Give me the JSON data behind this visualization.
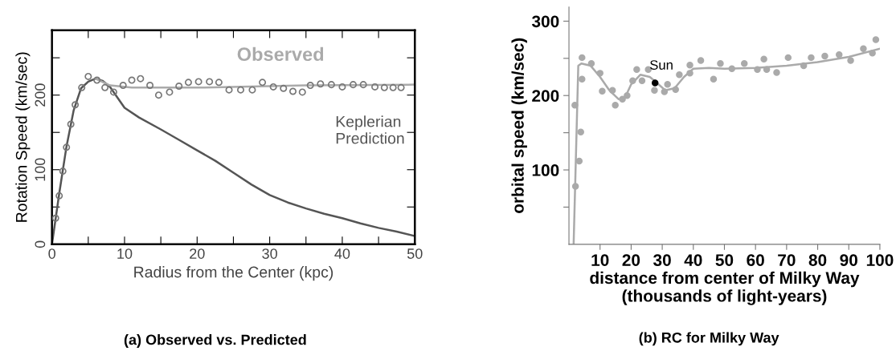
{
  "chart_data": [
    {
      "type": "line",
      "title": "(a) Observed vs. Predicted",
      "xlabel": "Radius from the Center (kpc)",
      "ylabel": "Rotation Speed (km/sec)",
      "xlim": [
        0,
        50
      ],
      "ylim": [
        0,
        287
      ],
      "xticks": [
        0,
        {
          "value": 5,
          "label": null
        },
        10,
        {
          "value": 15,
          "label": null
        },
        20,
        {
          "value": 25,
          "label": null
        },
        30,
        {
          "value": 35,
          "label": null
        },
        40,
        {
          "value": 45,
          "label": null
        },
        50
      ],
      "yticks": [
        0,
        {
          "value": 50,
          "label": null
        },
        100,
        {
          "value": 150,
          "label": null
        },
        200,
        {
          "value": 250,
          "label": null
        }
      ],
      "grid": false,
      "legend": false,
      "series": [
        {
          "name": "Keplerian Prediction",
          "color": "#555555",
          "x": [
            0,
            1,
            2,
            3,
            4,
            5,
            6,
            7,
            8,
            10,
            12,
            15,
            17.5,
            20,
            22.5,
            25,
            27.5,
            30,
            32.5,
            35,
            37.5,
            40,
            42.5,
            45,
            47.5,
            50
          ],
          "values": [
            0,
            68,
            131,
            180,
            209,
            218,
            222,
            219,
            211,
            183,
            170,
            154,
            140,
            126,
            112,
            96,
            80,
            66,
            56,
            48,
            41,
            35,
            28,
            22,
            17,
            11
          ]
        },
        {
          "color": "#aaaaaa",
          "x": [
            6,
            8,
            11,
            20,
            35,
            50
          ],
          "values": [
            222,
            213,
            210,
            210,
            213,
            214
          ]
        },
        {
          "type": "scatter",
          "name": "Observed",
          "color": "#777777",
          "marker": "circle",
          "x": [
            0.5,
            1,
            1.5,
            2,
            2.6,
            3.2,
            4.1,
            5,
            6.2,
            7.3,
            8.5,
            9.8,
            11,
            12.2,
            13.5,
            14.7,
            16.2,
            17.5,
            18.8,
            20.2,
            21.7,
            23,
            24.4,
            26,
            27.6,
            29,
            30.5,
            31.9,
            33.2,
            34.5,
            35.6,
            37,
            38.5,
            40,
            41.5,
            42.9,
            44.5,
            45.8,
            47,
            48.1
          ],
          "values": [
            35,
            65,
            98,
            130,
            161,
            187,
            210,
            225,
            220,
            210,
            204,
            213,
            220,
            222,
            213,
            200,
            204,
            212,
            217,
            218,
            218,
            217,
            207,
            207,
            207,
            217,
            211,
            209,
            205,
            204,
            213,
            215,
            214,
            211,
            214,
            214,
            211,
            210,
            210,
            210
          ]
        }
      ]
    },
    {
      "type": "scatter",
      "title": "(b) RC for Milky Way",
      "xlabel": "distance from center of Milky Way\n(thousands of light-years)",
      "ylabel": "orbital speed (km/sec)",
      "xlim": [
        0,
        100
      ],
      "ylim": [
        0,
        319
      ],
      "xticks": [
        10,
        20,
        30,
        40,
        50,
        60,
        70,
        80,
        90,
        100
      ],
      "yticks": [
        {
          "value": 50,
          "label": null
        },
        100,
        {
          "value": 150,
          "label": null
        },
        200,
        {
          "value": 250,
          "label": null
        },
        300
      ],
      "grid": false,
      "legend": false,
      "series": [
        {
          "type": "line",
          "color": "#aaaaaa",
          "x": [
            1.5,
            3,
            4,
            7,
            10,
            13,
            16,
            18,
            20,
            23,
            26,
            28,
            31,
            34,
            37,
            40,
            45,
            50,
            60,
            70,
            80,
            90,
            100
          ],
          "values": [
            0,
            240,
            243,
            240,
            225,
            207,
            195,
            197,
            215,
            228,
            225,
            218,
            207,
            210,
            225,
            236,
            237,
            236,
            237,
            240,
            245,
            252,
            263
          ]
        },
        {
          "color": "#aaaaaa",
          "marker": "circle",
          "x": [
            1.9,
            2.1,
            3.3,
            3.8,
            4.2,
            4.2,
            7.2,
            10,
            10.7,
            14,
            14.9,
            17.2,
            18.7,
            20.5,
            21.8,
            23.5,
            25.5,
            27.5,
            30.7,
            31.7,
            34.3,
            35.5,
            38.9,
            38.9,
            42.4,
            46.5,
            48.7,
            52.4,
            56.4,
            60.6,
            62.7,
            63.6,
            66.8,
            70.5,
            75.5,
            77.9,
            82.3,
            86.9,
            90.6,
            94.7,
            97.6,
            98.7
          ],
          "values": [
            187,
            78,
            112,
            151,
            251,
            222,
            243,
            230,
            206,
            207,
            187,
            195,
            200,
            220,
            235,
            220,
            235,
            207,
            205,
            215,
            208,
            228,
            230,
            241,
            247,
            222,
            243,
            236,
            243,
            235,
            249,
            235,
            231,
            251,
            240,
            251,
            253,
            255,
            247,
            263,
            257,
            275
          ]
        },
        {
          "name": "Sun",
          "color": "#000000",
          "marker": "circle",
          "x": [
            27.7
          ],
          "values": [
            217
          ]
        }
      ]
    }
  ]
}
